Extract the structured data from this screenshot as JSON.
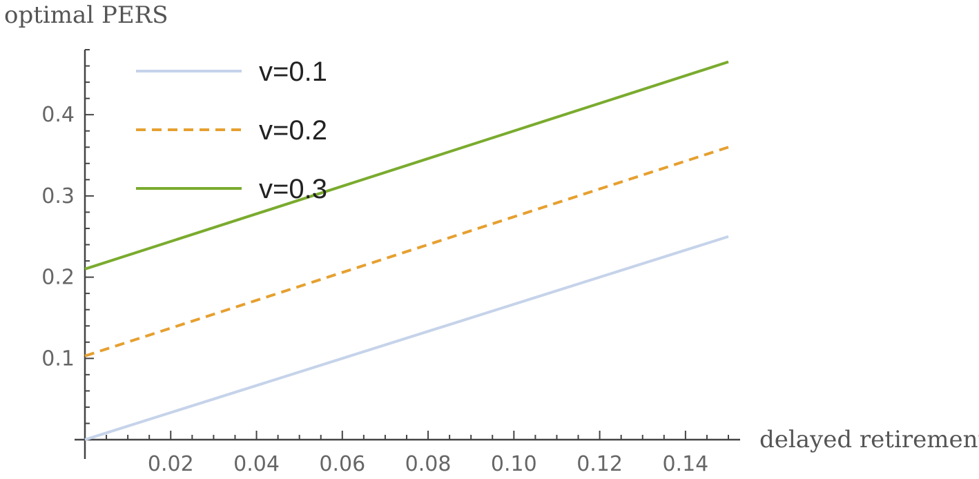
{
  "chart_data": {
    "type": "line",
    "xlabel": "delayed retirement",
    "ylabel": "optimal PERS",
    "xlim": [
      0,
      0.15
    ],
    "ylim": [
      0,
      0.48
    ],
    "x_ticks": [
      "0.02",
      "0.04",
      "0.06",
      "0.08",
      "0.10",
      "0.12",
      "0.14"
    ],
    "x_tick_values": [
      0.02,
      0.04,
      0.06,
      0.08,
      0.1,
      0.12,
      0.14
    ],
    "y_ticks": [
      "0.1",
      "0.2",
      "0.3",
      "0.4"
    ],
    "y_tick_values": [
      0.1,
      0.2,
      0.3,
      0.4
    ],
    "grid": false,
    "legend_position": "top-left",
    "series": [
      {
        "name": "v=0.1",
        "x": [
          0,
          0.15
        ],
        "y": [
          0.0,
          0.25
        ],
        "color": "#c5d3ea",
        "dash": "solid"
      },
      {
        "name": "v=0.2",
        "x": [
          0,
          0.15
        ],
        "y": [
          0.103,
          0.36
        ],
        "color": "#e6a030",
        "dash": "dashed"
      },
      {
        "name": "v=0.3",
        "x": [
          0,
          0.15
        ],
        "y": [
          0.21,
          0.465
        ],
        "color": "#7aab2e",
        "dash": "solid"
      }
    ]
  }
}
